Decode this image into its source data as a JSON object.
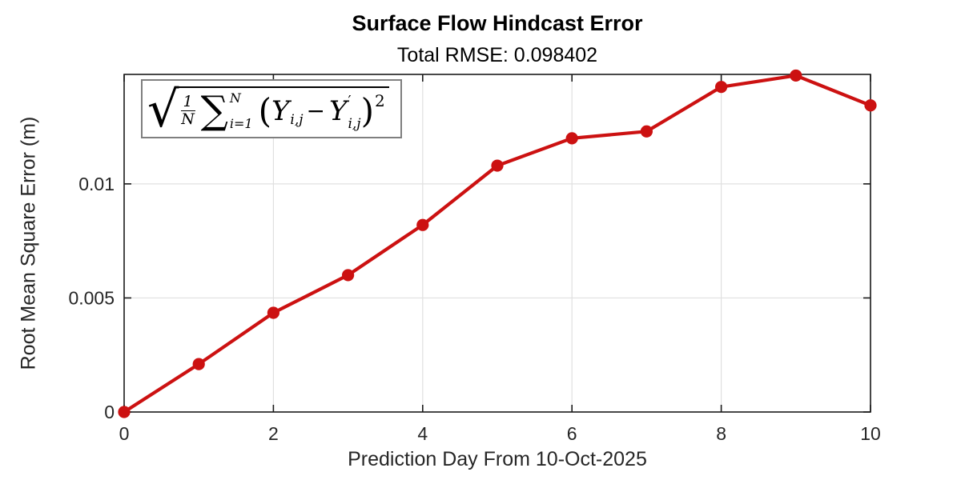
{
  "header": {
    "title": "Surface Flow Hindcast Error",
    "subtitle": "Total RMSE: 0.098402"
  },
  "formula": {
    "radical": "√",
    "frac_numerator": "1",
    "frac_denominator": "N",
    "sum_symbol": "∑",
    "sum_upper": "N",
    "sum_lower": "i=1",
    "lparen": "(",
    "y_first": "Y",
    "y_first_sub": "i,j",
    "minus": "−",
    "y_second": "Y",
    "y_second_prime": "′",
    "y_second_sub": "i,j",
    "rparen": ")",
    "exponent": "2"
  },
  "chart_data": {
    "type": "line",
    "title": "Surface Flow Hindcast Error",
    "subtitle": "Total RMSE: 0.098402",
    "xlabel": "Prediction Day From 10-Oct-2025",
    "ylabel": "Root Mean Square Error (m)",
    "x": [
      0,
      1,
      2,
      3,
      4,
      5,
      6,
      7,
      8,
      9,
      10
    ],
    "values": [
      0.0,
      0.0021,
      0.00435,
      0.006,
      0.0082,
      0.0108,
      0.012,
      0.0123,
      0.01425,
      0.01475,
      0.01344
    ],
    "xlim": [
      0,
      10
    ],
    "ylim": [
      0,
      0.0148
    ],
    "xticks": [
      0,
      2,
      4,
      6,
      8,
      10
    ],
    "xtick_labels": [
      "0",
      "2",
      "4",
      "6",
      "8",
      "10"
    ],
    "yticks": [
      0,
      0.005,
      0.01
    ],
    "ytick_labels": [
      "0",
      "0.005",
      "0.01"
    ],
    "grid": true,
    "legend": "none",
    "marker": "filled-circle",
    "annotation": "sqrt( (1/N) sum_{i=1}^{N} (Y_ij - Y'_ij)^2 )"
  },
  "colors": {
    "line": "#cc1111",
    "marker": "#cc1111",
    "axis": "#1a1a1a",
    "tick_text": "#262626",
    "grid": "#e0e0e0",
    "annotation_border": "#7f7f7f",
    "background": "#ffffff"
  }
}
